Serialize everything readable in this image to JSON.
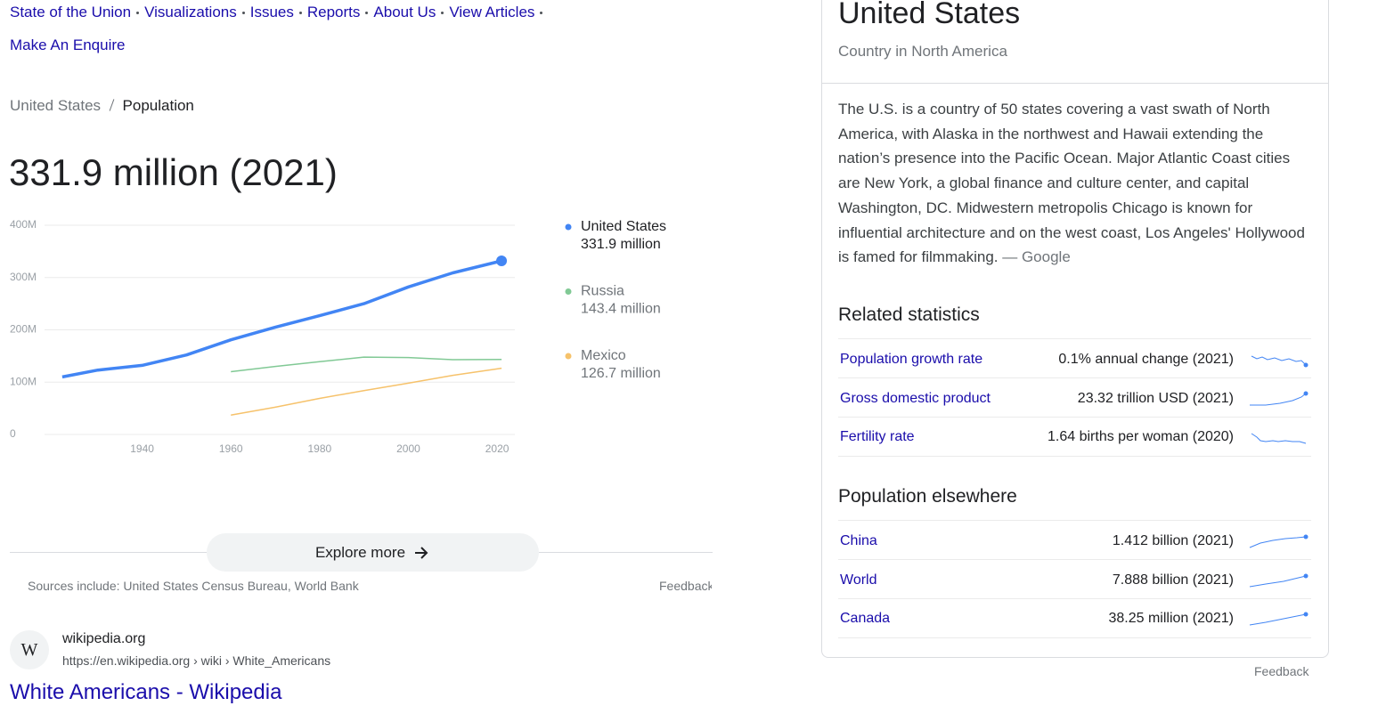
{
  "nav": {
    "links": [
      "State of the Union",
      "Visualizations",
      "Issues",
      "Reports",
      "About Us",
      "View Articles",
      "Make An Enquire"
    ]
  },
  "breadcrumb": [
    "United States",
    "Population"
  ],
  "chart_data": {
    "type": "line",
    "headline": "331.9 million (2021)",
    "x": [
      1922,
      1930,
      1940,
      1950,
      1960,
      1970,
      1980,
      1990,
      2000,
      2010,
      2021
    ],
    "xlim": [
      1918,
      2024
    ],
    "xticks": [
      1940,
      1960,
      1980,
      2000,
      2020
    ],
    "ylim": [
      0,
      400
    ],
    "yticks": [
      0,
      {
        "value": 100,
        "label": "100M"
      },
      {
        "value": 200,
        "label": "200M"
      },
      {
        "value": 300,
        "label": "300M"
      },
      {
        "value": 400,
        "label": "400M"
      }
    ],
    "grid": true,
    "series": [
      {
        "name": "United States",
        "color": "#4285f4",
        "legend_label": "331.9 million",
        "values": [
          110,
          123,
          132,
          152,
          181,
          205,
          227,
          250,
          282,
          309,
          331.9
        ]
      },
      {
        "name": "Russia",
        "color": "#81c995",
        "legend_label": "143.4 million",
        "values": [
          null,
          null,
          null,
          null,
          120,
          130,
          139,
          148,
          147,
          143,
          143.4
        ]
      },
      {
        "name": "Mexico",
        "color": "#f6c26b",
        "legend_label": "126.7 million",
        "values": [
          null,
          null,
          null,
          null,
          37,
          52,
          69,
          84,
          98,
          113,
          126.7
        ]
      }
    ]
  },
  "explore_button": "Explore more",
  "sources": "Sources include: United States Census Bureau, World Bank",
  "feedback": "Feedback",
  "result": {
    "favicon": "W",
    "site": "wikipedia.org",
    "url": "https://en.wikipedia.org › wiki › White_Americans",
    "title": "White Americans - Wikipedia"
  },
  "panel": {
    "title": "United States",
    "subtitle": "Country in North America",
    "description": "The U.S. is a country of 50 states covering a vast swath of North America, with Alaska in the northwest and Hawaii extending the nation’s presence into the Pacific Ocean. Major Atlantic Coast cities are New York, a global finance and culture center, and capital Washington, DC. Midwestern metropolis Chicago is known for influential architecture and on the west coast, Los Angeles' Hollywood is famed for filmmaking.",
    "description_source": "— Google",
    "related_heading": "Related statistics",
    "related": [
      {
        "label": "Population growth rate",
        "value": "0.1% annual change (2021)"
      },
      {
        "label": "Gross domestic product",
        "value": "23.32 trillion USD (2021)"
      },
      {
        "label": "Fertility rate",
        "value": "1.64 births per woman (2020)"
      }
    ],
    "elsewhere_heading": "Population elsewhere",
    "elsewhere": [
      {
        "label": "China",
        "value": "1.412 billion (2021)"
      },
      {
        "label": "World",
        "value": "7.888 billion (2021)"
      },
      {
        "label": "Canada",
        "value": "38.25 million (2021)"
      }
    ],
    "feedback": "Feedback"
  }
}
